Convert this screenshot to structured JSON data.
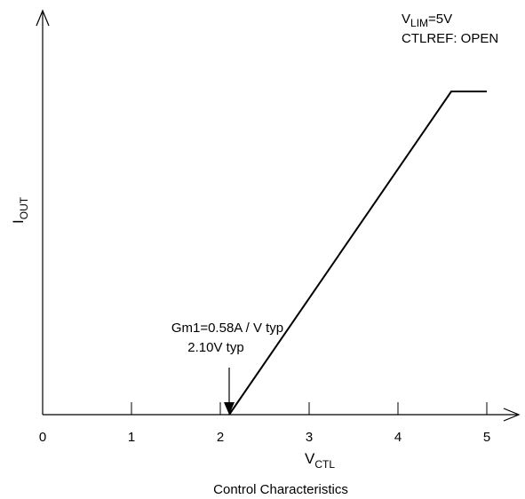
{
  "chart_data": {
    "type": "line",
    "title": "",
    "xlabel": {
      "main": "V",
      "sub": "CTL"
    },
    "ylabel": {
      "main": "I",
      "sub": "OUT"
    },
    "x_ticks": [
      "0",
      "1",
      "2",
      "3",
      "4",
      "5"
    ],
    "xlim": [
      0,
      5.2
    ],
    "y_unlabeled": true,
    "series": [
      {
        "x": [
          2.1,
          4.6,
          5.0
        ],
        "y": [
          0,
          1,
          1
        ]
      }
    ],
    "conditions": {
      "line1": {
        "main": "V",
        "sub": "LIM",
        "rest": "=5V"
      },
      "line2": "CTLREF: OPEN"
    },
    "annotations": {
      "gm": "Gm1=0.58A / V typ",
      "threshold": "2.10V typ",
      "threshold_x": 2.1
    },
    "caption": "Control Characteristics",
    "grid": false
  }
}
